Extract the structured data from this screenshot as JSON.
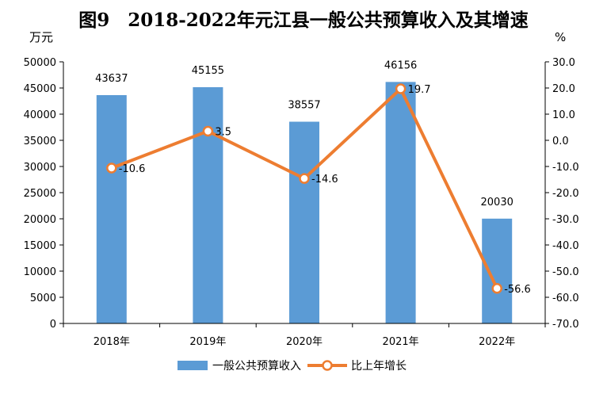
{
  "chart_data": {
    "type": "bar",
    "title": "图9　2018-2022年元江县一般公共预算收入及其增速",
    "left_unit": "万元",
    "right_unit": "%",
    "categories": [
      "2018年",
      "2019年",
      "2020年",
      "2021年",
      "2022年"
    ],
    "series": [
      {
        "name": "一般公共预算收入",
        "type": "bar",
        "axis": "left",
        "values": [
          43637,
          45155,
          38557,
          46156,
          20030
        ],
        "labels": [
          "43637",
          "45155",
          "38557",
          "46156",
          "20030"
        ]
      },
      {
        "name": "比上年增长",
        "type": "line",
        "axis": "right",
        "values": [
          -10.6,
          3.5,
          -14.6,
          19.7,
          -56.6
        ],
        "labels": [
          "-10.6",
          "3.5",
          "-14.6",
          "19.7",
          "-56.6"
        ]
      }
    ],
    "ylim_left": [
      0,
      50000
    ],
    "yticks_left": [
      "0",
      "5000",
      "10000",
      "15000",
      "20000",
      "25000",
      "30000",
      "35000",
      "40000",
      "45000",
      "50000"
    ],
    "ylim_right": [
      -70,
      30
    ],
    "yticks_right": [
      "30.0",
      "20.0",
      "10.0",
      "0.0",
      "-10.0",
      "-20.0",
      "-30.0",
      "-40.0",
      "-50.0",
      "-60.0",
      "-70.0"
    ],
    "legend": "bottom",
    "colors": {
      "bar": "#5b9bd5",
      "line": "#ed7d31",
      "marker_fill": "#ffffff",
      "axis": "#000000"
    }
  }
}
